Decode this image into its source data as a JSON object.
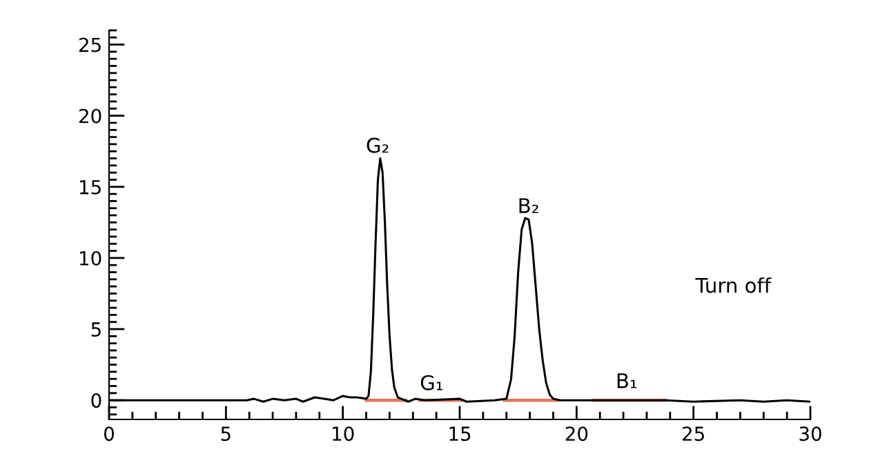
{
  "chart_data": {
    "type": "line",
    "x": [
      0,
      5.9,
      6.2,
      6.6,
      7.0,
      7.5,
      8.0,
      8.3,
      8.8,
      9.2,
      9.6,
      10.0,
      10.3,
      10.6,
      11.0,
      11.1,
      11.2,
      11.3,
      11.4,
      11.5,
      11.6,
      11.7,
      11.8,
      11.9,
      12.0,
      12.1,
      12.2,
      12.35,
      12.5,
      12.8,
      13.1,
      13.5,
      15.0,
      15.3,
      16.5,
      17.0,
      17.2,
      17.35,
      17.5,
      17.65,
      17.8,
      17.95,
      18.1,
      18.25,
      18.4,
      18.55,
      18.7,
      18.85,
      19.0,
      19.3,
      23.8,
      25,
      27,
      28,
      29,
      30
    ],
    "series": [
      {
        "color": "#000000",
        "values": [
          0,
          0,
          0.1,
          -0.1,
          0.1,
          0,
          0.1,
          -0.1,
          0.2,
          0.1,
          0,
          0.3,
          0.2,
          0.2,
          0.1,
          0.3,
          2,
          6,
          11,
          15.5,
          17.0,
          16,
          12.5,
          8,
          4.5,
          2.2,
          0.9,
          0.2,
          0.1,
          -0.1,
          0.1,
          0,
          0.1,
          -0.1,
          0,
          0.1,
          1.5,
          4.5,
          9,
          12,
          12.8,
          12.7,
          11,
          8,
          5,
          2.8,
          1.2,
          0.4,
          0.1,
          0,
          0,
          -0.1,
          0,
          -0.1,
          0,
          -0.1
        ]
      },
      {
        "color": "#e8735a",
        "x": [
          11.0,
          12.7
        ],
        "values": [
          0,
          0
        ]
      },
      {
        "color": "#e8735a",
        "x": [
          13.3,
          15.1
        ],
        "values": [
          0,
          0
        ]
      },
      {
        "color": "#e8735a",
        "x": [
          16.9,
          19.2
        ],
        "values": [
          0,
          0
        ]
      },
      {
        "color": "#e8735a",
        "x": [
          20.7,
          23.8
        ],
        "values": [
          0,
          0
        ]
      }
    ],
    "xlim": [
      0,
      30
    ],
    "xticks": [
      0,
      {
        "value": 1,
        "label": null
      },
      {
        "value": 2,
        "label": null
      },
      {
        "value": 3,
        "label": null
      },
      {
        "value": 4,
        "label": null
      },
      5,
      {
        "value": 6,
        "label": null
      },
      {
        "value": 7,
        "label": null
      },
      {
        "value": 8,
        "label": null
      },
      {
        "value": 9,
        "label": null
      },
      10,
      {
        "value": 11,
        "label": null
      },
      {
        "value": 12,
        "label": null
      },
      {
        "value": 13,
        "label": null
      },
      {
        "value": 14,
        "label": null
      },
      15,
      {
        "value": 16,
        "label": null
      },
      {
        "value": 17,
        "label": null
      },
      {
        "value": 18,
        "label": null
      },
      {
        "value": 19,
        "label": null
      },
      20,
      {
        "value": 21,
        "label": null
      },
      {
        "value": 22,
        "label": null
      },
      {
        "value": 23,
        "label": null
      },
      {
        "value": 24,
        "label": null
      },
      25,
      {
        "value": 26,
        "label": null
      },
      {
        "value": 27,
        "label": null
      },
      {
        "value": 28,
        "label": null
      },
      {
        "value": 29,
        "label": null
      },
      30
    ],
    "ylim": [
      -1.35,
      26
    ],
    "yticks": [
      {
        "value": -1,
        "label": null
      },
      {
        "value": -0.5,
        "label": null
      },
      0,
      {
        "value": 0.5,
        "label": null
      },
      {
        "value": 1,
        "label": null
      },
      {
        "value": 1.5,
        "label": null
      },
      {
        "value": 2,
        "label": null
      },
      {
        "value": 2.5,
        "label": null
      },
      {
        "value": 3,
        "label": null
      },
      {
        "value": 3.5,
        "label": null
      },
      {
        "value": 4,
        "label": null
      },
      {
        "value": 4.5,
        "label": null
      },
      5,
      {
        "value": 5.5,
        "label": null
      },
      {
        "value": 6,
        "label": null
      },
      {
        "value": 6.5,
        "label": null
      },
      {
        "value": 7,
        "label": null
      },
      {
        "value": 7.5,
        "label": null
      },
      {
        "value": 8,
        "label": null
      },
      {
        "value": 8.5,
        "label": null
      },
      {
        "value": 9,
        "label": null
      },
      {
        "value": 9.5,
        "label": null
      },
      10,
      {
        "value": 10.5,
        "label": null
      },
      {
        "value": 11,
        "label": null
      },
      {
        "value": 11.5,
        "label": null
      },
      {
        "value": 12,
        "label": null
      },
      {
        "value": 12.5,
        "label": null
      },
      {
        "value": 13,
        "label": null
      },
      {
        "value": 13.5,
        "label": null
      },
      {
        "value": 14,
        "label": null
      },
      {
        "value": 14.5,
        "label": null
      },
      15,
      {
        "value": 15.5,
        "label": null
      },
      {
        "value": 16,
        "label": null
      },
      {
        "value": 16.5,
        "label": null
      },
      {
        "value": 17,
        "label": null
      },
      {
        "value": 17.5,
        "label": null
      },
      {
        "value": 18,
        "label": null
      },
      {
        "value": 18.5,
        "label": null
      },
      {
        "value": 19,
        "label": null
      },
      {
        "value": 19.5,
        "label": null
      },
      20,
      {
        "value": 20.5,
        "label": null
      },
      {
        "value": 21,
        "label": null
      },
      {
        "value": 21.5,
        "label": null
      },
      {
        "value": 22,
        "label": null
      },
      {
        "value": 22.5,
        "label": null
      },
      {
        "value": 23,
        "label": null
      },
      {
        "value": 23.5,
        "label": null
      },
      {
        "value": 24,
        "label": null
      },
      {
        "value": 24.5,
        "label": null
      },
      25,
      {
        "value": 25.5,
        "label": null
      },
      {
        "value": 26,
        "label": null
      }
    ],
    "annotations": [
      "G₂",
      "G₁",
      "B₂",
      "B₁",
      "Turn off"
    ],
    "grid": false,
    "marker": "none",
    "line_style": "solid"
  }
}
